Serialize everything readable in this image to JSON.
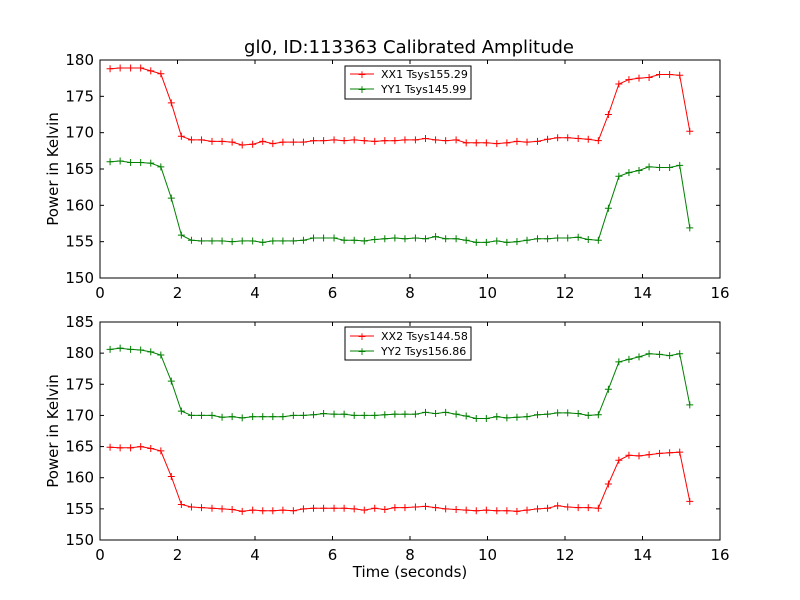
{
  "figure_title": "gl0, ID:113363 Calibrated Amplitude",
  "colors": {
    "red": "#ff0000",
    "green": "#008000"
  },
  "chart_data": [
    {
      "type": "line",
      "title": "gl0, ID:113363 Calibrated Amplitude",
      "xlabel": "",
      "ylabel": "Power in Kelvin",
      "xlim": [
        0,
        16
      ],
      "ylim": [
        150,
        180
      ],
      "xticks": [
        0,
        2,
        4,
        6,
        8,
        10,
        12,
        14,
        16
      ],
      "yticks": [
        150,
        155,
        160,
        165,
        170,
        175,
        180
      ],
      "grid": false,
      "legend_position": "top-center",
      "x": [
        0.26,
        0.52,
        0.79,
        1.05,
        1.31,
        1.57,
        1.84,
        2.1,
        2.36,
        2.62,
        2.89,
        3.15,
        3.41,
        3.67,
        3.94,
        4.2,
        4.46,
        4.72,
        4.99,
        5.25,
        5.51,
        5.77,
        6.04,
        6.3,
        6.56,
        6.82,
        7.09,
        7.35,
        7.61,
        7.87,
        8.14,
        8.4,
        8.66,
        8.92,
        9.19,
        9.45,
        9.71,
        9.97,
        10.24,
        10.5,
        10.76,
        11.02,
        11.29,
        11.55,
        11.81,
        12.07,
        12.34,
        12.6,
        12.86,
        13.12,
        13.39,
        13.65,
        13.91,
        14.17,
        14.44,
        14.7,
        14.96,
        15.22
      ],
      "series": [
        {
          "name": "XX1 Tsys155.29",
          "color": "#ff0000",
          "values": [
            178.8,
            178.9,
            178.9,
            178.9,
            178.5,
            178.1,
            174.1,
            169.5,
            169.0,
            169.0,
            168.8,
            168.8,
            168.7,
            168.3,
            168.4,
            168.8,
            168.5,
            168.7,
            168.7,
            168.7,
            168.9,
            168.9,
            169.0,
            168.9,
            169.0,
            168.9,
            168.8,
            168.9,
            168.9,
            169.0,
            169.0,
            169.2,
            169.0,
            168.9,
            169.0,
            168.6,
            168.6,
            168.6,
            168.5,
            168.6,
            168.8,
            168.7,
            168.8,
            169.1,
            169.3,
            169.3,
            169.2,
            169.1,
            168.9,
            172.5,
            176.7,
            177.3,
            177.5,
            177.6,
            178.0,
            178.0,
            177.9,
            170.2
          ]
        },
        {
          "name": "YY1 Tsys145.99",
          "color": "#008000",
          "values": [
            166.0,
            166.1,
            165.9,
            165.9,
            165.8,
            165.3,
            161.0,
            155.9,
            155.2,
            155.1,
            155.1,
            155.1,
            155.0,
            155.1,
            155.1,
            154.9,
            155.1,
            155.1,
            155.1,
            155.2,
            155.5,
            155.5,
            155.5,
            155.2,
            155.2,
            155.1,
            155.3,
            155.4,
            155.5,
            155.4,
            155.5,
            155.4,
            155.7,
            155.4,
            155.4,
            155.2,
            154.9,
            154.9,
            155.1,
            154.9,
            155.0,
            155.2,
            155.4,
            155.4,
            155.5,
            155.5,
            155.6,
            155.3,
            155.2,
            159.6,
            164.0,
            164.5,
            164.8,
            165.3,
            165.2,
            165.2,
            165.5,
            156.9
          ]
        }
      ]
    },
    {
      "type": "line",
      "title": "",
      "xlabel": "Time (seconds)",
      "ylabel": "Power in Kelvin",
      "xlim": [
        0,
        16
      ],
      "ylim": [
        150,
        185
      ],
      "xticks": [
        0,
        2,
        4,
        6,
        8,
        10,
        12,
        14,
        16
      ],
      "yticks": [
        150,
        155,
        160,
        165,
        170,
        175,
        180,
        185
      ],
      "grid": false,
      "legend_position": "top-center",
      "x": [
        0.26,
        0.52,
        0.79,
        1.05,
        1.31,
        1.57,
        1.84,
        2.1,
        2.36,
        2.62,
        2.89,
        3.15,
        3.41,
        3.67,
        3.94,
        4.2,
        4.46,
        4.72,
        4.99,
        5.25,
        5.51,
        5.77,
        6.04,
        6.3,
        6.56,
        6.82,
        7.09,
        7.35,
        7.61,
        7.87,
        8.14,
        8.4,
        8.66,
        8.92,
        9.19,
        9.45,
        9.71,
        9.97,
        10.24,
        10.5,
        10.76,
        11.02,
        11.29,
        11.55,
        11.81,
        12.07,
        12.34,
        12.6,
        12.86,
        13.12,
        13.39,
        13.65,
        13.91,
        14.17,
        14.44,
        14.7,
        14.96,
        15.22
      ],
      "series": [
        {
          "name": "XX2 Tsys144.58",
          "color": "#ff0000",
          "values": [
            164.9,
            164.8,
            164.8,
            165.0,
            164.7,
            164.3,
            160.2,
            155.7,
            155.3,
            155.2,
            155.1,
            155.0,
            154.9,
            154.6,
            154.8,
            154.7,
            154.7,
            154.8,
            154.7,
            155.0,
            155.1,
            155.1,
            155.1,
            155.1,
            155.0,
            154.8,
            155.1,
            154.9,
            155.2,
            155.2,
            155.3,
            155.4,
            155.2,
            155.0,
            154.9,
            154.8,
            154.7,
            154.8,
            154.7,
            154.7,
            154.6,
            154.8,
            155.0,
            155.1,
            155.5,
            155.3,
            155.2,
            155.2,
            155.1,
            159.0,
            162.8,
            163.6,
            163.5,
            163.7,
            163.9,
            164.0,
            164.1,
            156.2
          ]
        },
        {
          "name": "YY2 Tsys156.86",
          "color": "#008000",
          "values": [
            180.6,
            180.8,
            180.6,
            180.5,
            180.2,
            179.7,
            175.5,
            170.7,
            170.0,
            170.0,
            170.0,
            169.7,
            169.8,
            169.6,
            169.8,
            169.8,
            169.8,
            169.8,
            170.0,
            170.0,
            170.1,
            170.3,
            170.2,
            170.2,
            170.0,
            170.0,
            170.0,
            170.1,
            170.2,
            170.2,
            170.2,
            170.5,
            170.3,
            170.5,
            170.2,
            169.9,
            169.5,
            169.5,
            169.8,
            169.6,
            169.7,
            169.8,
            170.1,
            170.2,
            170.4,
            170.4,
            170.3,
            170.0,
            170.1,
            174.2,
            178.6,
            179.0,
            179.4,
            179.9,
            179.8,
            179.6,
            179.9,
            171.7
          ]
        }
      ]
    }
  ]
}
